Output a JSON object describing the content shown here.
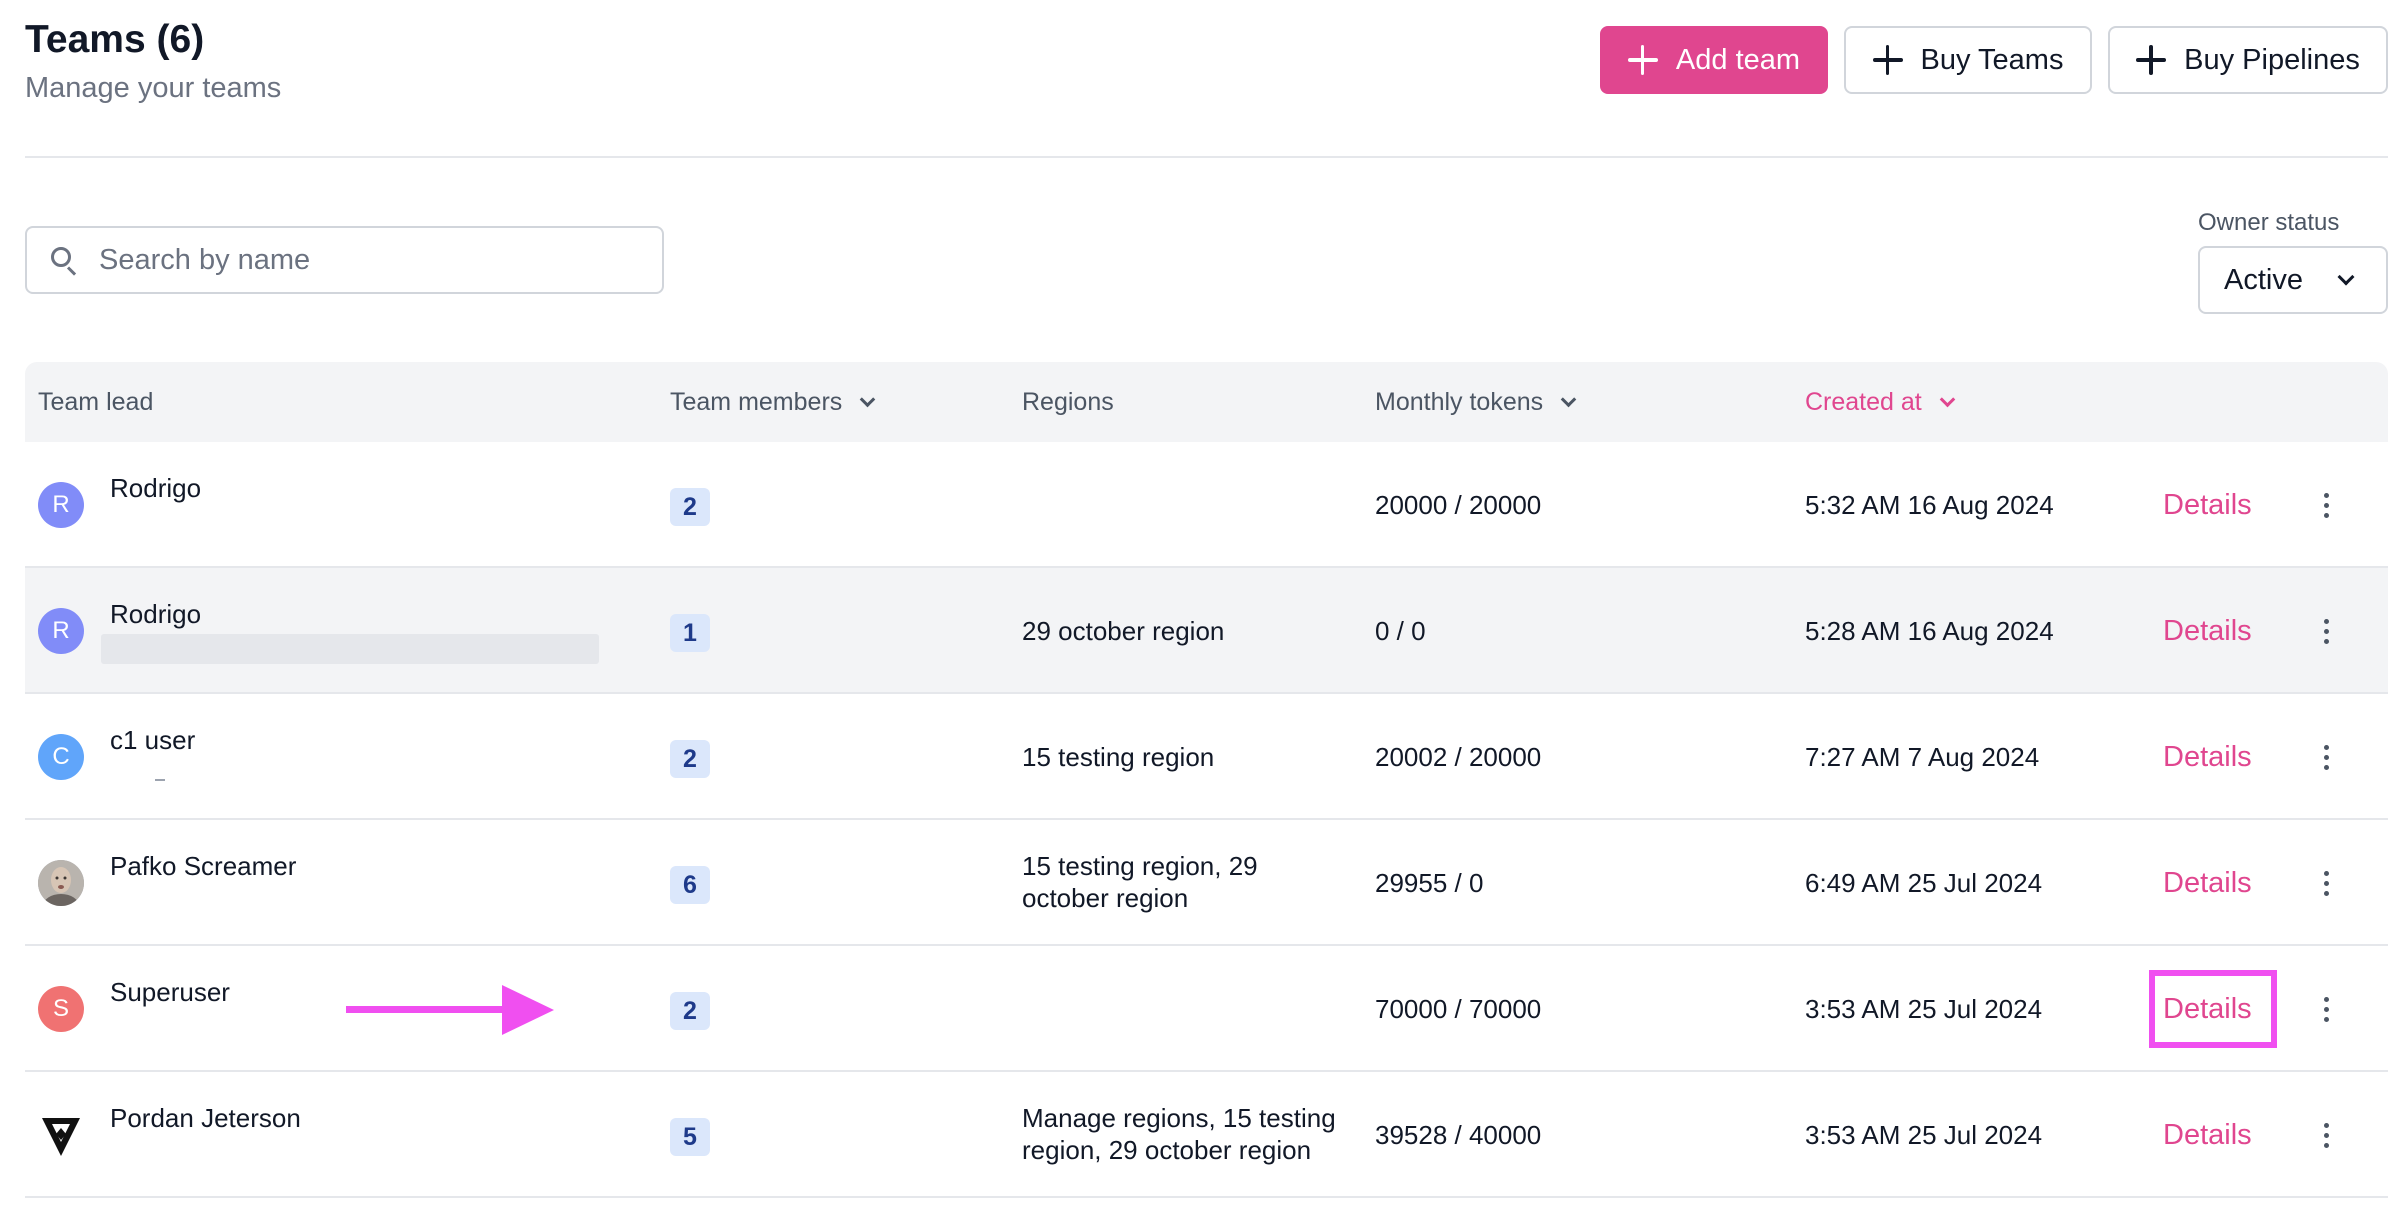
{
  "header": {
    "title": "Teams (6)",
    "subtitle": "Manage your teams",
    "add_team_label": "Add team",
    "buy_teams_label": "Buy Teams",
    "buy_pipelines_label": "Buy Pipelines"
  },
  "search": {
    "placeholder": "Search by name",
    "value": ""
  },
  "filter": {
    "label": "Owner status",
    "value": "Active"
  },
  "table": {
    "columns": {
      "team_lead": "Team lead",
      "team_members": "Team members",
      "regions": "Regions",
      "monthly_tokens": "Monthly tokens",
      "created_at": "Created at"
    },
    "details_label": "Details",
    "rows": [
      {
        "initial": "R",
        "name": "Rodrigo",
        "members": "2",
        "regions": "",
        "tokens": "20000 / 20000",
        "created": "5:32 AM 16 Aug 2024"
      },
      {
        "initial": "R",
        "name": "Rodrigo",
        "members": "1",
        "regions": "29 october region",
        "tokens": "0 / 0",
        "created": "5:28 AM 16 Aug 2024"
      },
      {
        "initial": "C",
        "name": "c1 user",
        "members": "2",
        "regions": "15 testing region",
        "tokens": "20002 / 20000",
        "created": "7:27 AM 7 Aug 2024"
      },
      {
        "initial": "",
        "name": "Pafko Screamer",
        "members": "6",
        "regions": "15 testing region, 29 october region",
        "tokens": "29955 / 0",
        "created": "6:49 AM 25 Jul 2024"
      },
      {
        "initial": "S",
        "name": "Superuser",
        "members": "2",
        "regions": "",
        "tokens": "70000 / 70000",
        "created": "3:53 AM 25 Jul 2024"
      },
      {
        "initial": "",
        "name": "Pordan Jeterson",
        "members": "5",
        "regions": "Manage regions, 15 testing region, 29 october region",
        "tokens": "39528 / 40000",
        "created": "3:53 AM 25 Jul 2024"
      }
    ]
  },
  "colors": {
    "accent": "#e0468f",
    "annotation": "#f04ff0",
    "avatar_r": "#818cf8",
    "avatar_c": "#60a5fa",
    "avatar_s": "#f07272",
    "badge_bg": "#dbe7fb"
  }
}
